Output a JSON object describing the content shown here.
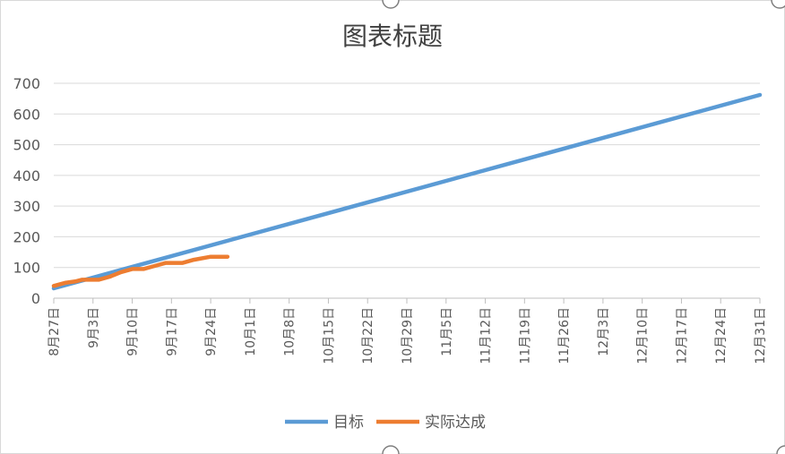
{
  "chart_data": {
    "type": "line",
    "title": "图表标题",
    "xlabel": "",
    "ylabel": "",
    "ylim": [
      0,
      700
    ],
    "yticks": [
      0,
      100,
      200,
      300,
      400,
      500,
      600,
      700
    ],
    "x_axis_type": "date",
    "xlim": [
      "08-27",
      "12-31"
    ],
    "x_tick_labels": [
      "8月27日",
      "9月3日",
      "9月10日",
      "9月17日",
      "9月24日",
      "10月1日",
      "10月8日",
      "10月15日",
      "10月22日",
      "10月29日",
      "11月5日",
      "11月12日",
      "11月19日",
      "11月26日",
      "12月3日",
      "12月10日",
      "12月17日",
      "12月24日",
      "12月31日"
    ],
    "x_ticks": [
      "08-27",
      "09-03",
      "09-10",
      "09-17",
      "09-24",
      "10-01",
      "10-08",
      "10-15",
      "10-22",
      "10-29",
      "11-05",
      "11-12",
      "11-19",
      "11-26",
      "12-03",
      "12-10",
      "12-17",
      "12-24",
      "12-31"
    ],
    "grid": true,
    "legend_position": "bottom",
    "series": [
      {
        "name": "目标",
        "color": "#5b9bd5",
        "x": [
          "08-27",
          "12-31"
        ],
        "values": [
          32,
          662
        ]
      },
      {
        "name": "实际达成",
        "color": "#ed7d31",
        "x": [
          "08-27",
          "08-29",
          "08-31",
          "09-01",
          "09-03",
          "09-04",
          "09-06",
          "09-08",
          "09-10",
          "09-12",
          "09-14",
          "09-16",
          "09-17",
          "09-19",
          "09-21",
          "09-24",
          "09-25",
          "09-27"
        ],
        "values": [
          40,
          50,
          55,
          60,
          60,
          60,
          70,
          85,
          95,
          95,
          105,
          115,
          115,
          115,
          125,
          135,
          135,
          135
        ]
      }
    ]
  }
}
